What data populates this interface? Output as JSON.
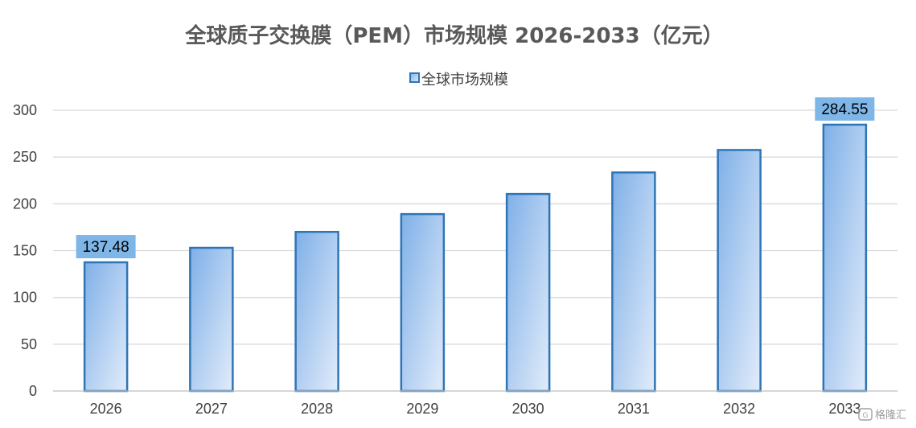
{
  "chart_data": {
    "type": "bar",
    "title": "全球质子交换膜（PEM）市场规模 2026-2033（亿元）",
    "xlabel": "",
    "ylabel": "",
    "categories": [
      "2026",
      "2027",
      "2028",
      "2029",
      "2030",
      "2031",
      "2032",
      "2033"
    ],
    "series": [
      {
        "name": "全球市场规模",
        "values": [
          137.48,
          153.0,
          170.0,
          189.0,
          210.5,
          233.5,
          257.5,
          284.55
        ]
      }
    ],
    "data_labels": [
      {
        "category": "2026",
        "text": "137.48"
      },
      {
        "category": "2033",
        "text": "284.55"
      }
    ],
    "ylim": [
      0,
      300
    ],
    "yticks": [
      0,
      50,
      100,
      150,
      200,
      250,
      300
    ],
    "grid": true,
    "legend_position": "top-center",
    "colors": {
      "bar_gradient_start": "#7fb0e8",
      "bar_gradient_end": "#e2ecfa",
      "bar_border": "#2e75b6",
      "label_background": "#7fb6e8",
      "gridline": "#d9d9d9",
      "axis_line": "#bfbfbf"
    }
  },
  "watermark": {
    "text": "格隆汇",
    "icon": "glh-logo-icon"
  }
}
